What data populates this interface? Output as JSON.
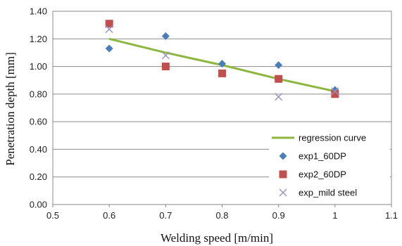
{
  "chart_data": {
    "type": "scatter",
    "xlabel": "Welding speed [m/min]",
    "ylabel": "Penetration depth [mm]",
    "xlim": [
      0.5,
      1.1
    ],
    "ylim": [
      0.0,
      1.4
    ],
    "x_ticks": [
      "0.5",
      "0.6",
      "0.7",
      "0.8",
      "0.9",
      "1",
      "1.1"
    ],
    "y_ticks": [
      "0.00",
      "0.20",
      "0.40",
      "0.60",
      "0.80",
      "1.00",
      "1.20",
      "1.40"
    ],
    "x_tick_values": [
      0.5,
      0.6,
      0.7,
      0.8,
      0.9,
      1.0,
      1.1
    ],
    "y_tick_values": [
      0.0,
      0.2,
      0.4,
      0.6,
      0.8,
      1.0,
      1.2,
      1.4
    ],
    "grid": "horizontal",
    "legend_position": "bottom-right",
    "series": [
      {
        "name": "regression curve",
        "kind": "line",
        "color": "#8db63e",
        "points": [
          [
            0.6,
            1.2
          ],
          [
            0.7,
            1.1
          ],
          [
            0.8,
            1.01
          ],
          [
            0.9,
            0.91
          ],
          [
            1.0,
            0.82
          ]
        ]
      },
      {
        "name": "exp1_60DP",
        "kind": "diamond",
        "color": "#4a7ebb",
        "points": [
          [
            0.6,
            1.13
          ],
          [
            0.7,
            1.22
          ],
          [
            0.8,
            1.02
          ],
          [
            0.9,
            1.01
          ],
          [
            1.0,
            0.83
          ]
        ]
      },
      {
        "name": "exp2_60DP",
        "kind": "square",
        "color": "#c0504d",
        "points": [
          [
            0.6,
            1.31
          ],
          [
            0.7,
            1.0
          ],
          [
            0.8,
            0.95
          ],
          [
            0.9,
            0.91
          ],
          [
            1.0,
            0.8
          ]
        ]
      },
      {
        "name": "exp_mild steel",
        "kind": "x",
        "color": "#9b8fbf",
        "points": [
          [
            0.6,
            1.27
          ],
          [
            0.7,
            1.08
          ],
          [
            0.9,
            0.78
          ],
          [
            1.0,
            0.82
          ]
        ]
      }
    ]
  }
}
